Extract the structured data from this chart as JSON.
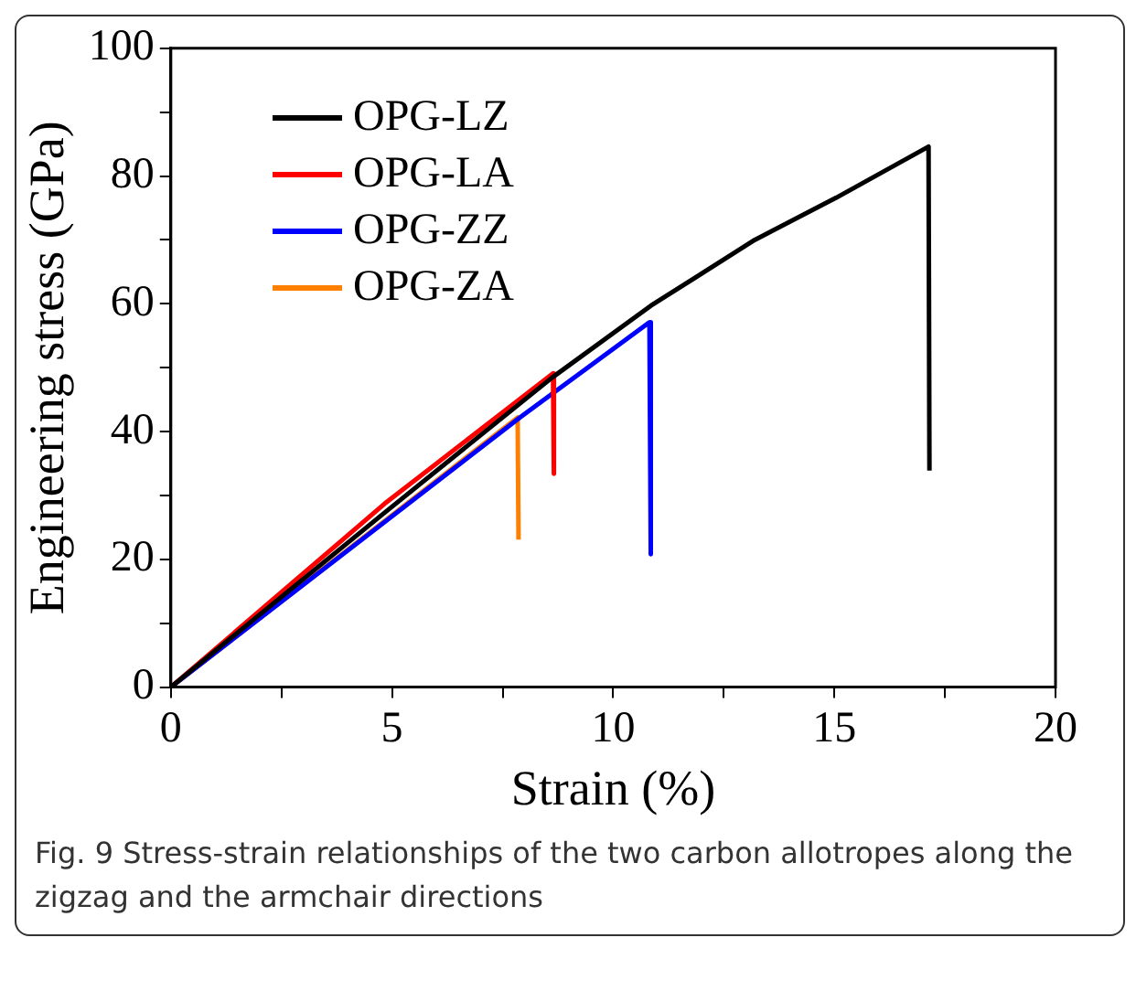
{
  "chart_data": {
    "type": "line",
    "xlabel": "Strain (%)",
    "ylabel": "Engineering stress (GPa)",
    "xlim": [
      0,
      20
    ],
    "ylim": [
      0,
      100
    ],
    "xticks": [
      0,
      {
        "value": 2.5,
        "label": null
      },
      5,
      {
        "value": 7.5,
        "label": null
      },
      10,
      {
        "value": 12.5,
        "label": null
      },
      15,
      {
        "value": 17.5,
        "label": null
      },
      20
    ],
    "yticks": [
      0,
      {
        "value": 10,
        "label": null
      },
      20,
      {
        "value": 30,
        "label": null
      },
      40,
      {
        "value": 50,
        "label": null
      },
      60,
      {
        "value": 70,
        "label": null
      },
      80,
      {
        "value": 90,
        "label": null
      },
      100
    ],
    "grid": false,
    "legend": "top left",
    "marker": "none",
    "line_style": "solid",
    "series": [
      {
        "name": "OPG-LZ",
        "color": "#000000",
        "x": [
          0,
          4.83,
          8.61,
          10.85,
          13.2,
          15.04,
          17.13,
          17.15
        ],
        "values": [
          0,
          27.3,
          48.4,
          59.7,
          70,
          76.6,
          84.6,
          33.9
        ]
      },
      {
        "name": "OPG-LA",
        "color": "#ff0000",
        "x": [
          0,
          4.83,
          8.64,
          8.66
        ],
        "values": [
          0,
          28.7,
          49.1,
          33.4
        ]
      },
      {
        "name": "OPG-ZZ",
        "color": "#0000ff",
        "x": [
          0,
          7.91,
          10.82,
          10.85
        ],
        "values": [
          0,
          42.3,
          57.1,
          20.8
        ]
      },
      {
        "name": "OPG-ZA",
        "color": "#ff7f00",
        "x": [
          0,
          7.84,
          7.86
        ],
        "values": [
          0,
          42.2,
          23.1
        ]
      }
    ],
    "annotations": [
      "Fig. 9 Stress-strain relationships of the two carbon allotropes along the zigzag and the armchair directions"
    ]
  }
}
